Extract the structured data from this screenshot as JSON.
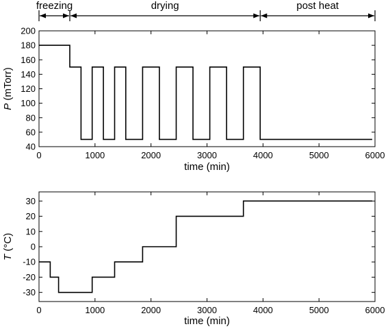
{
  "phases": [
    {
      "label": "freezing",
      "start": 0,
      "end": 550
    },
    {
      "label": "drying",
      "start": 550,
      "end": 3950
    },
    {
      "label": "post heat",
      "start": 3950,
      "end": 6000
    }
  ],
  "chart_data": [
    {
      "type": "line",
      "xlabel": "time (min)",
      "ylabel_symbol": "P",
      "ylabel_unit": "(mTorr)",
      "xlim": [
        0,
        6000
      ],
      "ylim": [
        40,
        200
      ],
      "xticks": [
        0,
        1000,
        2000,
        3000,
        4000,
        5000,
        6000
      ],
      "yticks": [
        40,
        60,
        80,
        100,
        120,
        140,
        160,
        180,
        200
      ],
      "grid": false,
      "series": [
        {
          "x": [
            0,
            550,
            550,
            750,
            750,
            950,
            950,
            1150,
            1150,
            1350,
            1350,
            1550,
            1550,
            1850,
            1850,
            2150,
            2150,
            2450,
            2450,
            2750,
            2750,
            3050,
            3050,
            3350,
            3350,
            3650,
            3650,
            3950,
            3950,
            5950
          ],
          "y": [
            180,
            180,
            150,
            150,
            50,
            50,
            150,
            150,
            50,
            50,
            150,
            150,
            50,
            50,
            150,
            150,
            50,
            50,
            150,
            150,
            50,
            50,
            150,
            150,
            50,
            50,
            150,
            150,
            50,
            50
          ]
        }
      ]
    },
    {
      "type": "line",
      "xlabel": "time (min)",
      "ylabel_symbol": "T",
      "ylabel_unit": "(°C)",
      "xlim": [
        0,
        6000
      ],
      "ylim": [
        -36,
        36
      ],
      "xticks": [
        0,
        1000,
        2000,
        3000,
        4000,
        5000,
        6000
      ],
      "yticks": [
        -30,
        -20,
        -10,
        0,
        10,
        20,
        30
      ],
      "grid": false,
      "series": [
        {
          "x": [
            0,
            200,
            200,
            350,
            350,
            950,
            950,
            1350,
            1350,
            1850,
            1850,
            2450,
            2450,
            3650,
            3650,
            5950
          ],
          "y": [
            -10,
            -10,
            -20,
            -20,
            -30,
            -30,
            -20,
            -20,
            -10,
            -10,
            0,
            0,
            20,
            20,
            30,
            30
          ]
        }
      ]
    }
  ]
}
